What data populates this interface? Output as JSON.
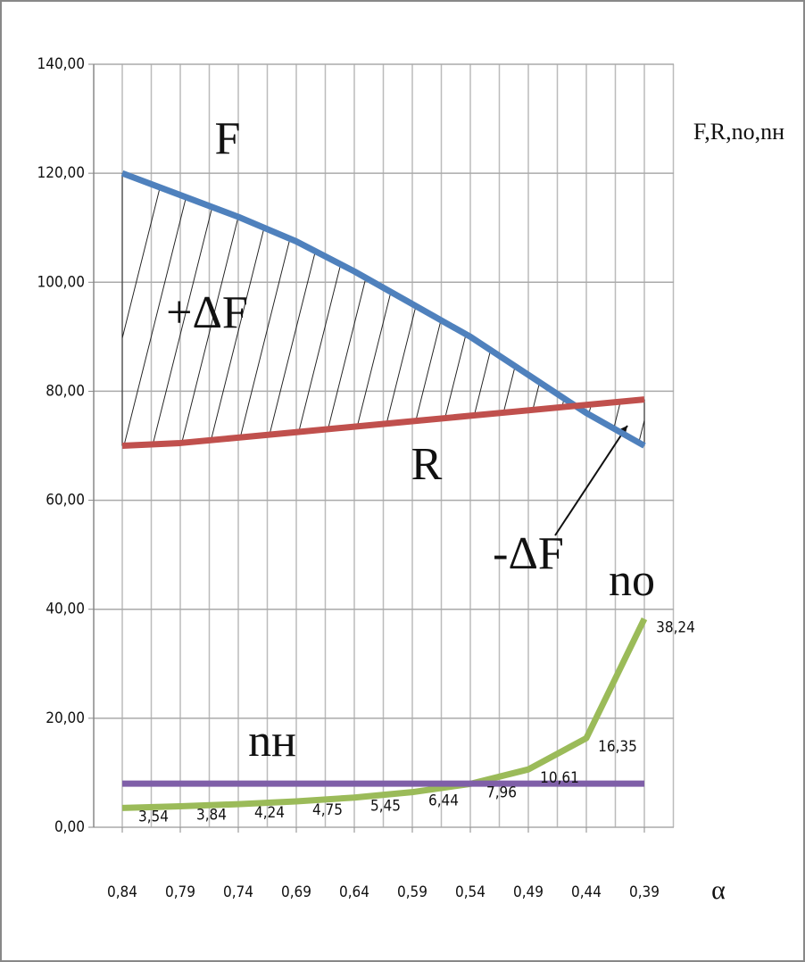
{
  "chart_data": {
    "type": "line",
    "categories": [
      "0,84",
      "0,79",
      "0,74",
      "0,69",
      "0,64",
      "0,59",
      "0,54",
      "0,49",
      "0,44",
      "0,39"
    ],
    "series": [
      {
        "name": "F",
        "color": "#4f81bd",
        "values": [
          120,
          116,
          112,
          107.5,
          102,
          96,
          90,
          83,
          76,
          70
        ]
      },
      {
        "name": "R",
        "color": "#c0504d",
        "values": [
          70,
          70.5,
          71.5,
          72.5,
          73.5,
          74.5,
          75.5,
          76.5,
          77.5,
          78.5
        ]
      },
      {
        "name": "nо",
        "color": "#9bbb59",
        "values": [
          3.54,
          3.84,
          4.24,
          4.75,
          5.45,
          6.44,
          7.96,
          10.61,
          16.35,
          38.24
        ],
        "value_labels": [
          "3,54",
          "3,84",
          "4,24",
          "4,75",
          "5,45",
          "6,44",
          "7,96",
          "10,61",
          "16,35",
          "38,24"
        ]
      },
      {
        "name": "nн",
        "color": "#7f5fa8",
        "values": [
          8,
          8,
          8,
          8,
          8,
          8,
          8,
          8,
          8,
          8
        ]
      }
    ],
    "annotations": [
      "+ΔF",
      "-ΔF"
    ],
    "y_label": "F,R,nо,nн",
    "x_label": "α",
    "ylim": [
      0,
      140
    ],
    "yticks": [
      {
        "value": 0,
        "label": "0,00"
      },
      {
        "value": 20,
        "label": "20,00"
      },
      {
        "value": 40,
        "label": "40,00"
      },
      {
        "value": 60,
        "label": "60,00"
      },
      {
        "value": 80,
        "label": "80,00"
      },
      {
        "value": 100,
        "label": "100,00"
      },
      {
        "value": 120,
        "label": "120,00"
      },
      {
        "value": 140,
        "label": "140,00"
      }
    ],
    "grid": true
  }
}
